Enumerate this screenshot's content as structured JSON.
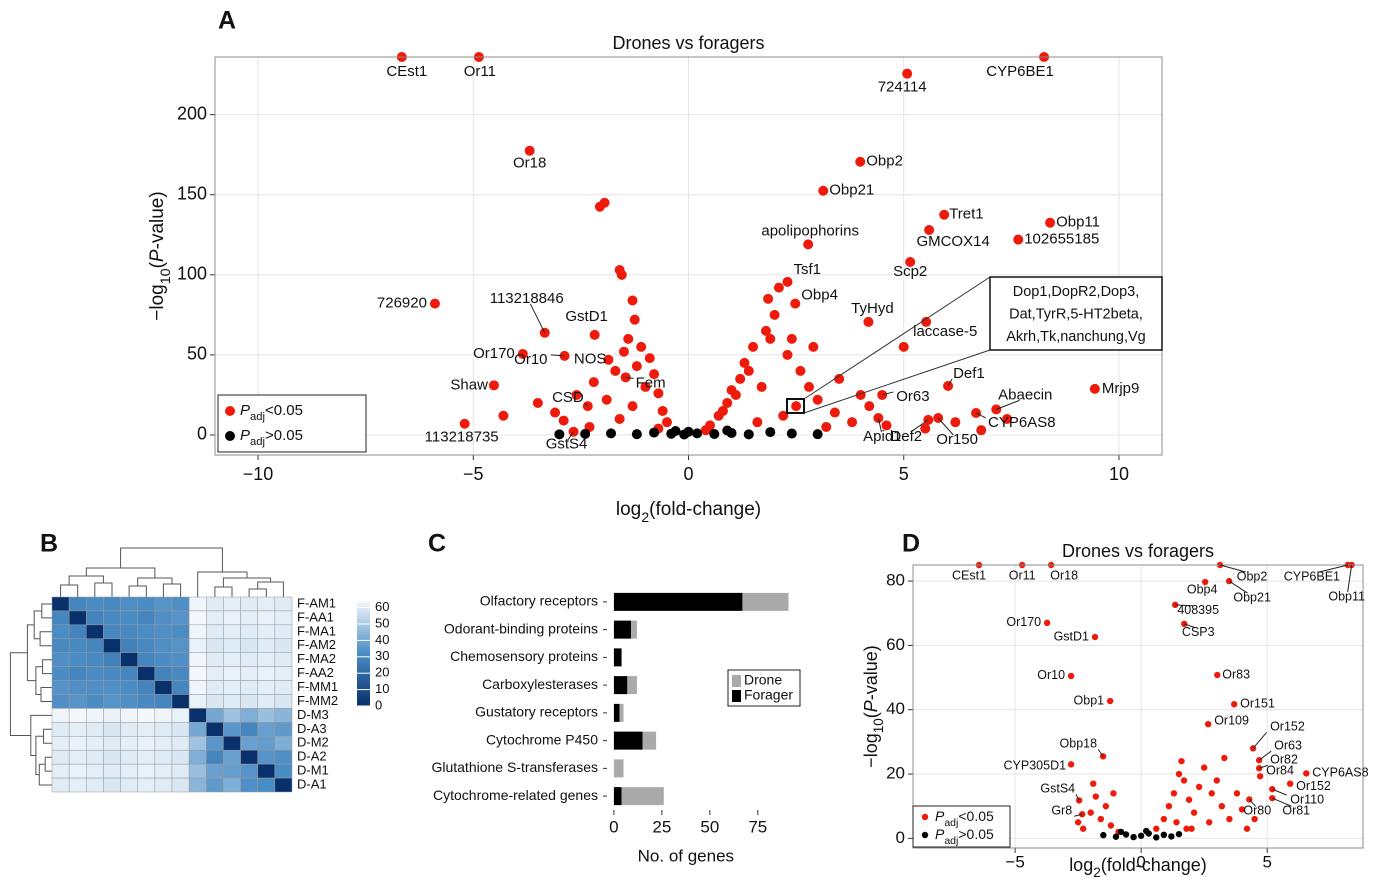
{
  "chart_data": [
    {
      "panel": "A",
      "type": "scatter",
      "title": "Drones vs foragers",
      "xlabel": "log2(fold-change)",
      "ylabel": "−log10(P-value)",
      "xlim": [
        -11,
        11
      ],
      "ylim": [
        -12.5,
        236
      ],
      "xticks": [
        {
          "value": -10,
          "label": "−10"
        },
        {
          "value": -5,
          "label": "−5"
        },
        0,
        5,
        10
      ],
      "yticks": [
        0,
        50,
        100,
        150,
        200
      ],
      "grid": true,
      "legend": "bottom-left",
      "annotation": [
        "Dop1,DopR2,Dop3,",
        "Dat,TyrR,5-HT2beta,",
        "Akrh,Tk,nanchung,Vg"
      ],
      "series": [
        {
          "name": "Padj<0.05",
          "color": "#ee1b0c",
          "x": [
            -6.66,
            -4.87,
            5.08,
            8.26,
            -3.69,
            3.99,
            3.13,
            5.94,
            8.4,
            5.59,
            7.66,
            2.78,
            5.15,
            2.3,
            2.48,
            -5.89,
            4.18,
            5.52,
            -3.34,
            -2.18,
            -3.85,
            -2.88,
            -1.86,
            -1.46,
            -4.52,
            6.03,
            9.44,
            4.5,
            7.15,
            6.68,
            -2.34,
            -5.2,
            4.41,
            5.57,
            5.8,
            -2.67,
            -2.06,
            -1.95,
            -1.55,
            -1.6,
            -1.3,
            -1.25,
            -1.4,
            -1.1,
            -1.5,
            -0.9,
            -1.2,
            -0.8,
            -1.7,
            -2.2,
            -1.0,
            -0.7,
            -2.6,
            -3.1,
            -1.9,
            -0.6,
            -1.3,
            -2.9,
            -0.5,
            -1.6,
            -3.5,
            -4.3,
            -2.3,
            0.5,
            0.7,
            0.9,
            1.0,
            1.2,
            1.3,
            1.5,
            1.8,
            2.0,
            2.1,
            1.9,
            1.4,
            1.1,
            0.8,
            1.7,
            2.3,
            2.6,
            2.8,
            3.0,
            2.5,
            2.2,
            3.4,
            3.8,
            4.2,
            4.6,
            5.5,
            6.2,
            6.8,
            7.4,
            3.2,
            1.6,
            2.4,
            2.9,
            1.85,
            5.0,
            3.5,
            4.0,
            -0.7,
            0.4
          ],
          "values": [
            236,
            236,
            225.6,
            236,
            177.5,
            170.6,
            152.5,
            137.5,
            132.5,
            128,
            122,
            119,
            108,
            95.6,
            82,
            82,
            70.6,
            70.6,
            63.8,
            62.5,
            50.6,
            49.4,
            47,
            36,
            31,
            30.6,
            28.8,
            25,
            16,
            13.75,
            18,
            7,
            10.6,
            9.4,
            10.6,
            2,
            142.5,
            145,
            100,
            103,
            84,
            72,
            60,
            55,
            52,
            48,
            43,
            38,
            40,
            33,
            30,
            26,
            25,
            14,
            22,
            15,
            18,
            9,
            8,
            10,
            20,
            12,
            5,
            6,
            12,
            20,
            28,
            35,
            45,
            55,
            65,
            75,
            92,
            60,
            40,
            25,
            15,
            30,
            50,
            40,
            30,
            22,
            18,
            12,
            14,
            8,
            18,
            6,
            4,
            8,
            3,
            10,
            5,
            8,
            60,
            55,
            85,
            55,
            35,
            25,
            4,
            3
          ],
          "labels": [
            "CEst1",
            "Or11",
            "724114",
            "CYP6BE1",
            "Or18",
            "Obp2",
            "Obp21",
            "Tret1",
            "Obp11",
            "GMCOX14",
            "102655185",
            "apolipophorins",
            "Scp2",
            "Tsf1",
            "Obp4",
            "726920",
            "TyHyd",
            "laccase-5",
            "113218846",
            "GstD1",
            "Or170",
            "Or10",
            "NOS",
            "Fem",
            "Shaw",
            "Def1",
            "Mrjp9",
            "Or63",
            "Abaecin",
            "CYP6AS8",
            "CSD",
            "113218735",
            "Apid1",
            "Def2",
            "Or150",
            "GstS4",
            null,
            null,
            null,
            null,
            null,
            null,
            null,
            null,
            null,
            null,
            null,
            null,
            null,
            null,
            null,
            null,
            null,
            null,
            null,
            null,
            null,
            null,
            null,
            null,
            null,
            null,
            null,
            null,
            null,
            null,
            null,
            null,
            null,
            null,
            null,
            null,
            null,
            null,
            null,
            null,
            null,
            null,
            null,
            null,
            null,
            null,
            null,
            null,
            null,
            null,
            null,
            null,
            null,
            null,
            null,
            null,
            null,
            null,
            null,
            null,
            null,
            null,
            null,
            null,
            null,
            null
          ]
        },
        {
          "name": "Padj>0.05",
          "color": "#000000",
          "x": [
            -1.8,
            -1.2,
            -0.8,
            -0.4,
            -0.1,
            0.2,
            0.6,
            1.0,
            1.4,
            1.9,
            2.4,
            -2.4,
            0.0,
            -0.3,
            0.9,
            3.0,
            -3
          ],
          "values": [
            1,
            0.5,
            1.5,
            0.8,
            0.3,
            1,
            0.6,
            1.2,
            0.4,
            1.8,
            0.9,
            0.7,
            2,
            2.5,
            2.8,
            0.5,
            0.4
          ]
        }
      ]
    },
    {
      "panel": "B",
      "type": "heatmap",
      "rows": [
        "F-AM1",
        "F-AA1",
        "F-MA1",
        "F-AM2",
        "F-MA2",
        "F-AA2",
        "F-MM1",
        "F-MM2",
        "D-M3",
        "D-A3",
        "D-M2",
        "D-A2",
        "D-M1",
        "D-A1"
      ],
      "values": [
        [
          0,
          30,
          32,
          31,
          33,
          32,
          34,
          33,
          63,
          60,
          61,
          60,
          61,
          60
        ],
        [
          30,
          0,
          29,
          31,
          32,
          30,
          33,
          34,
          64,
          61,
          62,
          61,
          62,
          61
        ],
        [
          32,
          29,
          0,
          30,
          31,
          32,
          33,
          32,
          63,
          60,
          61,
          60,
          61,
          60
        ],
        [
          31,
          31,
          30,
          0,
          28,
          31,
          33,
          34,
          62,
          59,
          60,
          59,
          60,
          59
        ],
        [
          33,
          32,
          31,
          28,
          0,
          30,
          32,
          33,
          63,
          60,
          61,
          60,
          61,
          60
        ],
        [
          32,
          30,
          32,
          31,
          30,
          0,
          29,
          31,
          64,
          61,
          62,
          61,
          62,
          61
        ],
        [
          34,
          33,
          33,
          33,
          32,
          29,
          0,
          30,
          63,
          60,
          61,
          60,
          61,
          60
        ],
        [
          33,
          34,
          32,
          34,
          33,
          31,
          30,
          0,
          62,
          59,
          60,
          59,
          60,
          59
        ],
        [
          63,
          64,
          63,
          62,
          63,
          64,
          63,
          62,
          0,
          40,
          48,
          42,
          47,
          44
        ],
        [
          60,
          61,
          60,
          59,
          60,
          61,
          60,
          59,
          40,
          0,
          35,
          30,
          38,
          36
        ],
        [
          61,
          62,
          61,
          60,
          61,
          62,
          61,
          60,
          48,
          35,
          0,
          38,
          37,
          42
        ],
        [
          60,
          61,
          60,
          59,
          60,
          61,
          60,
          59,
          42,
          30,
          38,
          0,
          34,
          33
        ],
        [
          61,
          62,
          61,
          60,
          61,
          62,
          61,
          60,
          47,
          38,
          37,
          34,
          0,
          32
        ],
        [
          60,
          61,
          60,
          59,
          60,
          61,
          60,
          59,
          44,
          36,
          42,
          33,
          32,
          0
        ]
      ],
      "zlim": [
        0,
        64
      ],
      "zticks": [
        0,
        10,
        20,
        30,
        40,
        50,
        60
      ],
      "colormap": [
        "#08306b",
        "#4a8cc4",
        "#f4f8fc"
      ]
    },
    {
      "panel": "C",
      "type": "bar",
      "orientation": "horizontal",
      "categories": [
        "Olfactory receptors",
        "Odorant-binding proteins",
        "Chemosensory proteins",
        "Carboxylesterases",
        "Gustatory receptors",
        "Cytochrome P450",
        "Glutathione S-transferases",
        "Cytochrome-related genes"
      ],
      "series": [
        {
          "name": "Forager",
          "color": "#000000",
          "values": [
            67,
            9,
            4,
            7,
            3,
            15,
            0,
            4
          ]
        },
        {
          "name": "Drone",
          "color": "#aaaaaa",
          "values": [
            24,
            3,
            0,
            5,
            2,
            7,
            5,
            22
          ]
        }
      ],
      "xlim": [
        -3.6,
        97
      ],
      "xticks": [
        0,
        25,
        50,
        75
      ],
      "xlabel": "No. of genes",
      "legend": "right"
    },
    {
      "panel": "D",
      "type": "scatter",
      "title": "Drones vs foragers",
      "xlabel": "log2(fold-change)",
      "ylabel": "−log10(P-value)",
      "xlim": [
        -9.05,
        8.8
      ],
      "ylim": [
        -3,
        85
      ],
      "xticks": [
        {
          "value": -5,
          "label": "−5"
        },
        0,
        5
      ],
      "yticks": [
        0,
        20,
        40,
        60,
        80
      ],
      "grid": true,
      "legend": "bottom-left",
      "series": [
        {
          "name": "Padj<0.05",
          "color": "#ee1b0c",
          "x": [
            -6.43,
            -4.72,
            -3.57,
            3.13,
            8.2,
            8.35,
            2.54,
            3.49,
            1.35,
            1.71,
            -3.73,
            -1.83,
            3.02,
            -2.78,
            -1.23,
            3.69,
            2.66,
            4.44,
            -1.51,
            4.68,
            4.68,
            4.72,
            6.55,
            -2.78,
            5.91,
            5.2,
            -2.46,
            4.29,
            5.2,
            -2.34,
            -2.3,
            -2.0,
            -1.8,
            -1.6,
            -1.4,
            -1.2,
            -0.9,
            -2.5,
            -1.9,
            -1.1,
            0.6,
            0.9,
            1.1,
            1.3,
            1.5,
            1.6,
            1.7,
            1.9,
            2.1,
            2.3,
            2.5,
            2.8,
            3.0,
            3.2,
            3.5,
            3.8,
            4.0,
            4.5,
            2.0,
            1.4,
            1.8,
            2.7,
            3.3,
            4.2
          ],
          "values": [
            85,
            85,
            85,
            85,
            85,
            85,
            79.7,
            80,
            72.6,
            66.7,
            67,
            62.6,
            50.8,
            50.5,
            42.7,
            41.7,
            35.5,
            28,
            25.5,
            24.3,
            21.8,
            19.3,
            20.2,
            23,
            17,
            15.3,
            11.8,
            12.1,
            12.5,
            7.5,
            3,
            8,
            13,
            6,
            10,
            4,
            2,
            5,
            17,
            14,
            3,
            6,
            10,
            14,
            20,
            24,
            18,
            12,
            8,
            16,
            22,
            14,
            18,
            10,
            6,
            14,
            9,
            6,
            3,
            5,
            3,
            5,
            25,
            3
          ],
          "labels": [
            "CEst1",
            "Or11",
            "Or18",
            "Obp2",
            "CYP6BE1",
            "Obp11",
            "Obp4",
            "Obp21",
            "408395",
            "CSP3",
            "Or170",
            "GstD1",
            "Or83",
            "Or10",
            "Obp1",
            "Or151",
            "Or109",
            "Or152",
            "Obp18",
            "Or63",
            "Or82",
            "Or84",
            "CYP6AS8",
            "CYP305D1",
            "Or152",
            "Or110",
            "GstS4",
            "Or80",
            "Or81",
            "Gr8",
            null,
            null,
            null,
            null,
            null,
            null,
            null,
            null,
            null,
            null,
            null,
            null,
            null,
            null,
            null,
            null,
            null,
            null,
            null,
            null,
            null,
            null,
            null,
            null,
            null,
            null,
            null,
            null,
            null,
            null,
            null,
            null,
            null,
            null
          ]
        },
        {
          "name": "Padj>0.05",
          "color": "#000000",
          "x": [
            -1.5,
            -1.0,
            -0.6,
            -0.3,
            0,
            0.3,
            0.6,
            0.9,
            1.2,
            1.5,
            -0.8,
            0.2
          ],
          "values": [
            1,
            0.5,
            1.2,
            0.4,
            0.8,
            1.5,
            0.3,
            1.1,
            0.6,
            1.3,
            2,
            2.3
          ]
        }
      ]
    }
  ]
}
